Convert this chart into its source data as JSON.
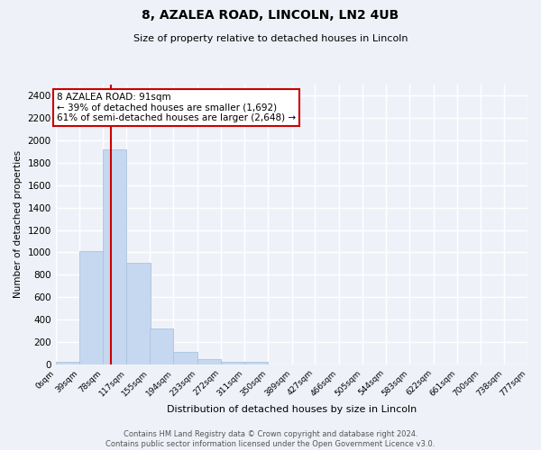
{
  "title": "8, AZALEA ROAD, LINCOLN, LN2 4UB",
  "subtitle": "Size of property relative to detached houses in Lincoln",
  "xlabel": "Distribution of detached houses by size in Lincoln",
  "ylabel": "Number of detached properties",
  "bar_color": "#c5d8f0",
  "bar_edgecolor": "#a8c4e0",
  "vline_x": 91,
  "vline_color": "#cc0000",
  "annotation_title": "8 AZALEA ROAD: 91sqm",
  "annotation_line2": "← 39% of detached houses are smaller (1,692)",
  "annotation_line3": "61% of semi-detached houses are larger (2,648) →",
  "annotation_box_color": "#ffffff",
  "annotation_box_edgecolor": "#cc0000",
  "bin_edges": [
    0,
    39,
    78,
    117,
    155,
    194,
    233,
    272,
    311,
    350,
    389,
    427,
    466,
    505,
    544,
    583,
    622,
    661,
    700,
    738,
    777
  ],
  "bin_labels": [
    "0sqm",
    "39sqm",
    "78sqm",
    "117sqm",
    "155sqm",
    "194sqm",
    "233sqm",
    "272sqm",
    "311sqm",
    "350sqm",
    "389sqm",
    "427sqm",
    "466sqm",
    "505sqm",
    "544sqm",
    "583sqm",
    "622sqm",
    "661sqm",
    "700sqm",
    "738sqm",
    "777sqm"
  ],
  "bar_heights": [
    20,
    1010,
    1920,
    910,
    320,
    110,
    50,
    25,
    25,
    0,
    0,
    0,
    0,
    0,
    0,
    0,
    0,
    0,
    0,
    0
  ],
  "ylim": [
    0,
    2500
  ],
  "yticks": [
    0,
    200,
    400,
    600,
    800,
    1000,
    1200,
    1400,
    1600,
    1800,
    2000,
    2200,
    2400
  ],
  "footnote": "Contains HM Land Registry data © Crown copyright and database right 2024.\nContains public sector information licensed under the Open Government Licence v3.0.",
  "bg_color": "#eef2f8",
  "plot_bg_color": "#eef2f8",
  "grid_color": "#ffffff"
}
